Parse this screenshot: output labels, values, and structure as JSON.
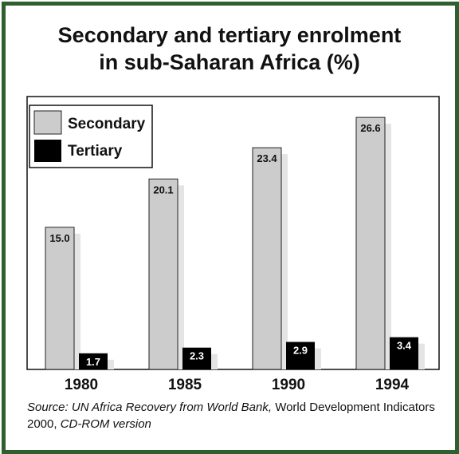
{
  "title_line1": "Secondary and tertiary enrolment",
  "title_line2": "in sub-Saharan Africa (%)",
  "source": {
    "part1": "Source: UN Africa Recovery from World Bank,",
    "part2": " World Development Indicators 2000, ",
    "part3": "CD-ROM version"
  },
  "chart_data": {
    "type": "bar",
    "title": "Secondary and tertiary enrolment in sub-Saharan Africa (%)",
    "categories": [
      "1980",
      "1985",
      "1990",
      "1994"
    ],
    "series": [
      {
        "name": "Secondary",
        "values": [
          15.0,
          20.1,
          23.4,
          26.6
        ],
        "labels": [
          "15.0",
          "20.1",
          "23.4",
          "26.6"
        ],
        "color": "#cccccc"
      },
      {
        "name": "Tertiary",
        "values": [
          1.7,
          2.3,
          2.9,
          3.4
        ],
        "labels": [
          "1.7",
          "2.3",
          "2.9",
          "3.4"
        ],
        "color": "#000000"
      }
    ],
    "ylim": [
      0,
      28.8
    ],
    "legend": "top-left",
    "grid": false
  }
}
